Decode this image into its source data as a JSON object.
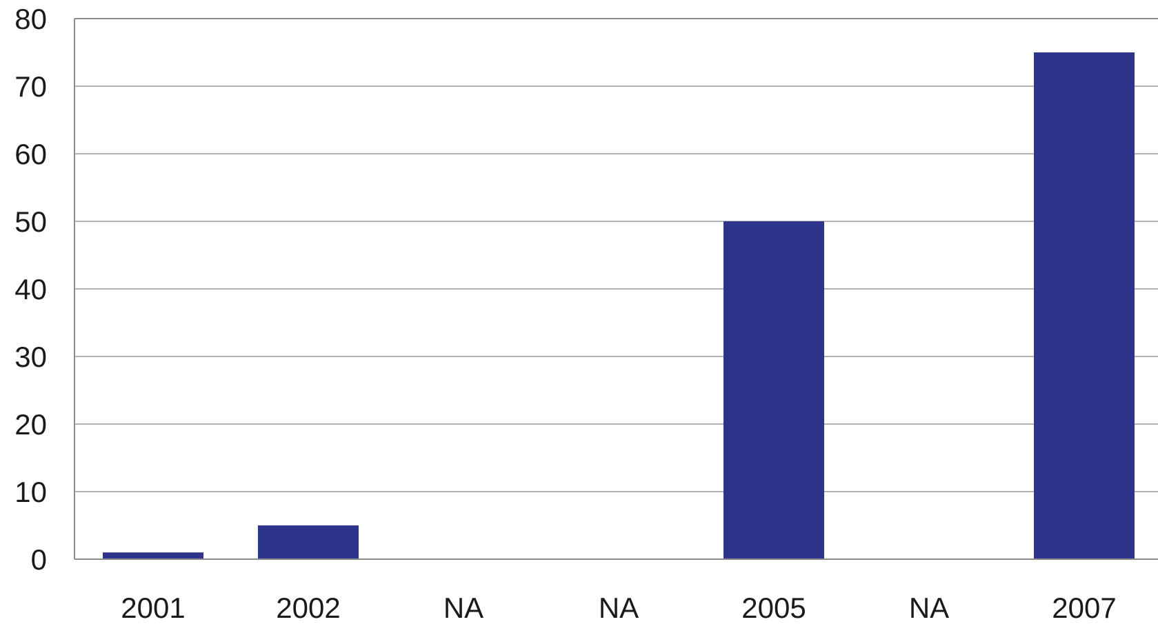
{
  "chart_data": {
    "type": "bar",
    "title": "",
    "xlabel": "",
    "ylabel": "",
    "categories": [
      "2001",
      "2002",
      "NA",
      "NA",
      "2005",
      "NA",
      "2007"
    ],
    "values": [
      1,
      5,
      0,
      0,
      50,
      0,
      75
    ],
    "ylim": [
      0,
      80
    ],
    "yticks": [
      0,
      10,
      20,
      30,
      40,
      50,
      60,
      70,
      80
    ],
    "grid": true,
    "legend": "none",
    "colors": {
      "bar": "#2e348c",
      "grid": "#b3b3b3",
      "axis": "#8c8c8c",
      "text": "#1a1a1a"
    }
  }
}
